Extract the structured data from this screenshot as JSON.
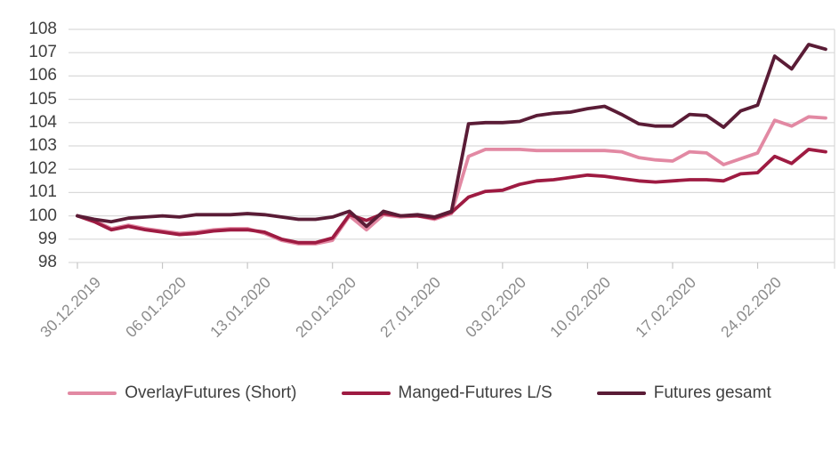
{
  "chart_data": {
    "type": "line",
    "title": "",
    "xlabel": "",
    "ylabel": "",
    "ylim": [
      98,
      108
    ],
    "grid": "horizontal",
    "legend_position": "bottom",
    "y_axis": {
      "min": 98,
      "max": 108,
      "step": 1,
      "tick_labels": [
        "98",
        "99",
        "100",
        "101",
        "102",
        "103",
        "104",
        "105",
        "106",
        "107",
        "108"
      ]
    },
    "x_axis": {
      "tick_labels": [
        "30.12.2019",
        "06.01.2020",
        "13.01.2020",
        "20.01.2020",
        "27.01.2020",
        "03.02.2020",
        "10.02.2020",
        "17.02.2020",
        "24.02.2020"
      ],
      "points_per_tick": 5
    },
    "x_dates": [
      "30.12.2019",
      "31.12.2019",
      "01.01.2020",
      "02.01.2020",
      "03.01.2020",
      "06.01.2020",
      "07.01.2020",
      "08.01.2020",
      "09.01.2020",
      "10.01.2020",
      "13.01.2020",
      "14.01.2020",
      "15.01.2020",
      "16.01.2020",
      "17.01.2020",
      "20.01.2020",
      "21.01.2020",
      "22.01.2020",
      "23.01.2020",
      "24.01.2020",
      "27.01.2020",
      "28.01.2020",
      "29.01.2020",
      "30.01.2020",
      "31.01.2020",
      "03.02.2020",
      "04.02.2020",
      "05.02.2020",
      "06.02.2020",
      "07.02.2020",
      "10.02.2020",
      "11.02.2020",
      "12.02.2020",
      "13.02.2020",
      "14.02.2020",
      "17.02.2020",
      "18.02.2020",
      "19.02.2020",
      "20.02.2020",
      "21.02.2020",
      "24.02.2020",
      "25.02.2020",
      "26.02.2020",
      "27.02.2020",
      "28.02.2020"
    ],
    "series": [
      {
        "name": "OverlayFutures (Short)",
        "color": "#E289A3",
        "values": [
          100.0,
          99.8,
          99.45,
          99.6,
          99.45,
          99.35,
          99.25,
          99.3,
          99.4,
          99.45,
          99.45,
          99.25,
          98.95,
          98.8,
          98.8,
          98.95,
          100.0,
          99.4,
          100.05,
          99.95,
          100.0,
          99.85,
          100.1,
          102.55,
          102.85,
          102.85,
          102.85,
          102.8,
          102.8,
          102.8,
          102.8,
          102.8,
          102.75,
          102.5,
          102.4,
          102.35,
          102.75,
          102.7,
          102.2,
          102.45,
          102.7,
          104.1,
          103.85,
          104.25,
          104.2
        ]
      },
      {
        "name": "Manged-Futures L/S",
        "color": "#9E1B42",
        "values": [
          100.0,
          99.75,
          99.4,
          99.55,
          99.4,
          99.3,
          99.2,
          99.25,
          99.35,
          99.4,
          99.4,
          99.3,
          99.0,
          98.85,
          98.85,
          99.05,
          100.05,
          99.8,
          100.1,
          100.0,
          100.0,
          99.9,
          100.15,
          100.8,
          101.05,
          101.1,
          101.35,
          101.5,
          101.55,
          101.65,
          101.75,
          101.7,
          101.6,
          101.5,
          101.45,
          101.5,
          101.55,
          101.55,
          101.5,
          101.8,
          101.85,
          102.55,
          102.25,
          102.85,
          102.75
        ]
      },
      {
        "name": "Futures gesamt",
        "color": "#5A1C36",
        "values": [
          100.0,
          99.85,
          99.75,
          99.9,
          99.95,
          100.0,
          99.95,
          100.05,
          100.05,
          100.05,
          100.1,
          100.05,
          99.95,
          99.85,
          99.85,
          99.95,
          100.2,
          99.55,
          100.2,
          100.0,
          100.05,
          99.95,
          100.2,
          103.95,
          104.0,
          104.0,
          104.05,
          104.3,
          104.4,
          104.45,
          104.6,
          104.7,
          104.35,
          103.95,
          103.85,
          103.85,
          104.35,
          104.3,
          103.8,
          104.5,
          104.75,
          106.85,
          106.3,
          107.35,
          107.15
        ]
      }
    ],
    "colors": {
      "gridline": "#D9D9D9",
      "axis_tick": "#C6C6C6",
      "y_label_text": "#3F3F3F",
      "x_label_text": "#8C8C8C",
      "legend_text": "#404040",
      "background": "#FFFFFF"
    }
  }
}
